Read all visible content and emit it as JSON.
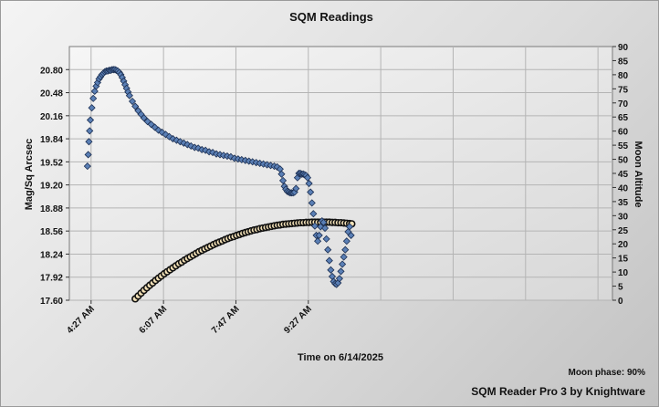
{
  "footer": {
    "moon_phase": "Moon phase: 90%",
    "credit": "SQM Reader Pro 3 by Knightware"
  },
  "chart_data": {
    "type": "scatter",
    "title": "SQM Readings",
    "xlabel": "Time on 6/14/2025",
    "ylabel": "Mag/Sq Arcsec",
    "y2label": "Moon Altitude",
    "x_ticks": [
      "4:27 AM",
      "6:07 AM",
      "7:47 AM",
      "9:27 AM"
    ],
    "x_tick_minutes": [
      267,
      367,
      467,
      567
    ],
    "xlim_minutes": [
      237,
      987
    ],
    "ylim": [
      17.6,
      21.12
    ],
    "y_ticks": [
      "17.60",
      "17.92",
      "18.24",
      "18.56",
      "18.88",
      "19.20",
      "19.52",
      "19.84",
      "20.16",
      "20.48",
      "20.80"
    ],
    "y2lim": [
      0,
      90
    ],
    "y2_ticks": [
      "0",
      "5",
      "10",
      "15",
      "20",
      "25",
      "30",
      "35",
      "40",
      "45",
      "50",
      "55",
      "60",
      "65",
      "70",
      "75",
      "80",
      "85",
      "90"
    ],
    "grid": true,
    "series": [
      {
        "axis": "left",
        "color": "#5a7fb5",
        "marker": "diamond",
        "points": [
          [
            262,
            19.46
          ],
          [
            263,
            19.62
          ],
          [
            264,
            19.8
          ],
          [
            265,
            19.95
          ],
          [
            266,
            20.1
          ],
          [
            268,
            20.27
          ],
          [
            270,
            20.4
          ],
          [
            272,
            20.5
          ],
          [
            274,
            20.57
          ],
          [
            276,
            20.62
          ],
          [
            278,
            20.67
          ],
          [
            280,
            20.7
          ],
          [
            282,
            20.73
          ],
          [
            284,
            20.75
          ],
          [
            286,
            20.77
          ],
          [
            288,
            20.78
          ],
          [
            290,
            20.78
          ],
          [
            292,
            20.79
          ],
          [
            294,
            20.79
          ],
          [
            296,
            20.8
          ],
          [
            298,
            20.8
          ],
          [
            300,
            20.8
          ],
          [
            302,
            20.79
          ],
          [
            304,
            20.78
          ],
          [
            306,
            20.76
          ],
          [
            308,
            20.73
          ],
          [
            310,
            20.69
          ],
          [
            312,
            20.64
          ],
          [
            314,
            20.59
          ],
          [
            316,
            20.54
          ],
          [
            318,
            20.49
          ],
          [
            320,
            20.44
          ],
          [
            324,
            20.36
          ],
          [
            328,
            20.29
          ],
          [
            332,
            20.23
          ],
          [
            336,
            20.18
          ],
          [
            340,
            20.13
          ],
          [
            345,
            20.08
          ],
          [
            350,
            20.04
          ],
          [
            355,
            20.0
          ],
          [
            360,
            19.96
          ],
          [
            365,
            19.93
          ],
          [
            370,
            19.9
          ],
          [
            375,
            19.87
          ],
          [
            380,
            19.84
          ],
          [
            385,
            19.82
          ],
          [
            390,
            19.8
          ],
          [
            395,
            19.78
          ],
          [
            400,
            19.76
          ],
          [
            405,
            19.74
          ],
          [
            410,
            19.72
          ],
          [
            415,
            19.71
          ],
          [
            420,
            19.69
          ],
          [
            425,
            19.68
          ],
          [
            430,
            19.66
          ],
          [
            435,
            19.65
          ],
          [
            440,
            19.63
          ],
          [
            445,
            19.62
          ],
          [
            450,
            19.61
          ],
          [
            455,
            19.6
          ],
          [
            460,
            19.59
          ],
          [
            465,
            19.57
          ],
          [
            470,
            19.56
          ],
          [
            475,
            19.55
          ],
          [
            480,
            19.54
          ],
          [
            485,
            19.53
          ],
          [
            490,
            19.52
          ],
          [
            495,
            19.51
          ],
          [
            500,
            19.5
          ],
          [
            505,
            19.49
          ],
          [
            510,
            19.48
          ],
          [
            515,
            19.47
          ],
          [
            520,
            19.46
          ],
          [
            524,
            19.45
          ],
          [
            528,
            19.42
          ],
          [
            530,
            19.35
          ],
          [
            532,
            19.26
          ],
          [
            534,
            19.18
          ],
          [
            536,
            19.14
          ],
          [
            538,
            19.11
          ],
          [
            540,
            19.1
          ],
          [
            542,
            19.09
          ],
          [
            544,
            19.09
          ],
          [
            546,
            19.09
          ],
          [
            548,
            19.1
          ],
          [
            550,
            19.15
          ],
          [
            552,
            19.3
          ],
          [
            554,
            19.36
          ],
          [
            556,
            19.36
          ],
          [
            558,
            19.35
          ],
          [
            560,
            19.35
          ],
          [
            562,
            19.34
          ],
          [
            564,
            19.33
          ],
          [
            566,
            19.3
          ],
          [
            568,
            19.22
          ],
          [
            570,
            19.1
          ],
          [
            572,
            18.95
          ],
          [
            574,
            18.8
          ],
          [
            576,
            18.63
          ],
          [
            578,
            18.5
          ],
          [
            580,
            18.42
          ],
          [
            582,
            18.5
          ],
          [
            584,
            18.62
          ],
          [
            586,
            18.7
          ],
          [
            588,
            18.68
          ],
          [
            590,
            18.6
          ],
          [
            592,
            18.45
          ],
          [
            594,
            18.3
          ],
          [
            596,
            18.15
          ],
          [
            598,
            18.02
          ],
          [
            600,
            17.93
          ],
          [
            602,
            17.86
          ],
          [
            604,
            17.83
          ],
          [
            606,
            17.82
          ],
          [
            608,
            17.84
          ],
          [
            610,
            17.9
          ],
          [
            612,
            18.0
          ],
          [
            614,
            18.1
          ],
          [
            616,
            18.2
          ],
          [
            618,
            18.3
          ],
          [
            620,
            18.42
          ],
          [
            622,
            18.55
          ],
          [
            624,
            18.62
          ],
          [
            626,
            18.5
          ]
        ]
      },
      {
        "axis": "right",
        "color": "#111111",
        "marker": "circle",
        "points": [
          [
            328,
            0.5
          ],
          [
            332,
            1.5
          ],
          [
            336,
            2.5
          ],
          [
            340,
            3.5
          ],
          [
            344,
            4.4
          ],
          [
            348,
            5.3
          ],
          [
            352,
            6.1
          ],
          [
            356,
            7.0
          ],
          [
            360,
            7.8
          ],
          [
            364,
            8.6
          ],
          [
            368,
            9.4
          ],
          [
            372,
            10.1
          ],
          [
            376,
            10.8
          ],
          [
            380,
            11.5
          ],
          [
            384,
            12.2
          ],
          [
            388,
            12.9
          ],
          [
            392,
            13.5
          ],
          [
            396,
            14.2
          ],
          [
            400,
            14.8
          ],
          [
            404,
            15.4
          ],
          [
            408,
            16.0
          ],
          [
            412,
            16.6
          ],
          [
            416,
            17.2
          ],
          [
            420,
            17.7
          ],
          [
            424,
            18.2
          ],
          [
            428,
            18.7
          ],
          [
            432,
            19.2
          ],
          [
            436,
            19.7
          ],
          [
            440,
            20.2
          ],
          [
            444,
            20.6
          ],
          [
            448,
            21.0
          ],
          [
            452,
            21.5
          ],
          [
            456,
            21.9
          ],
          [
            460,
            22.3
          ],
          [
            464,
            22.6
          ],
          [
            468,
            23.0
          ],
          [
            472,
            23.3
          ],
          [
            476,
            23.7
          ],
          [
            480,
            24.0
          ],
          [
            484,
            24.3
          ],
          [
            488,
            24.6
          ],
          [
            492,
            24.9
          ],
          [
            496,
            25.1
          ],
          [
            500,
            25.4
          ],
          [
            504,
            25.6
          ],
          [
            508,
            25.8
          ],
          [
            512,
            26.0
          ],
          [
            516,
            26.2
          ],
          [
            520,
            26.4
          ],
          [
            524,
            26.6
          ],
          [
            528,
            26.7
          ],
          [
            532,
            26.9
          ],
          [
            536,
            27.0
          ],
          [
            540,
            27.1
          ],
          [
            544,
            27.2
          ],
          [
            548,
            27.3
          ],
          [
            552,
            27.4
          ],
          [
            556,
            27.5
          ],
          [
            560,
            27.5
          ],
          [
            564,
            27.6
          ],
          [
            568,
            27.6
          ],
          [
            572,
            27.7
          ],
          [
            576,
            27.7
          ],
          [
            580,
            27.7
          ],
          [
            584,
            27.7
          ],
          [
            588,
            27.7
          ],
          [
            592,
            27.7
          ],
          [
            596,
            27.7
          ],
          [
            600,
            27.6
          ],
          [
            604,
            27.6
          ],
          [
            608,
            27.5
          ],
          [
            612,
            27.5
          ],
          [
            616,
            27.4
          ],
          [
            620,
            27.3
          ],
          [
            624,
            27.2
          ],
          [
            627,
            27.1
          ]
        ]
      }
    ]
  }
}
